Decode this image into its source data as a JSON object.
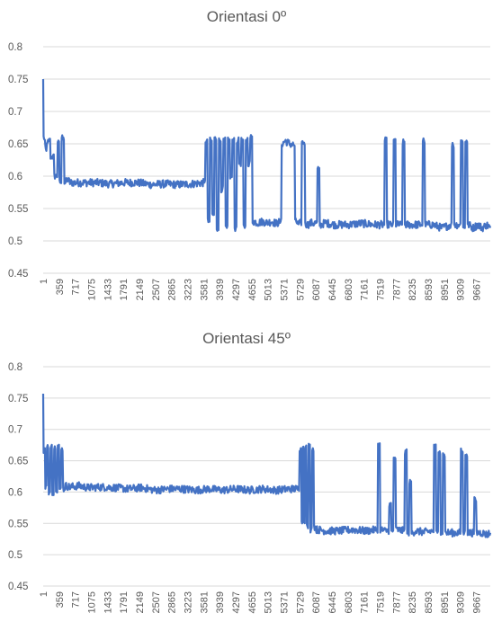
{
  "colors": {
    "series": "#4472C4",
    "grid": "#d9d9d9",
    "text": "#595959"
  },
  "chart_data": [
    {
      "type": "line",
      "title": "Orientasi 0º",
      "xlabel": "",
      "ylabel": "",
      "ylim": [
        0.45,
        0.8
      ],
      "yticks": [
        "0.8",
        "0.75",
        "0.7",
        "0.65",
        "0.6",
        "0.55",
        "0.5",
        "0.45"
      ],
      "xticks": [
        "1",
        "359",
        "717",
        "1075",
        "1433",
        "1791",
        "2149",
        "2507",
        "2865",
        "3223",
        "3581",
        "3939",
        "4297",
        "4655",
        "5013",
        "5371",
        "5729",
        "6087",
        "6445",
        "6803",
        "7161",
        "7519",
        "7877",
        "8235",
        "8593",
        "8951",
        "9309",
        "9667"
      ],
      "xlim": [
        1,
        9980
      ],
      "grid": true,
      "legend": "none",
      "series": [
        {
          "x": [
            1,
            20,
            40,
            60,
            120,
            200,
            300,
            340,
            380,
            450,
            500,
            550,
            600,
            700,
            900,
            1200,
            1500,
            1800,
            2100,
            2400,
            2700,
            3000,
            3300,
            3600,
            3650,
            3700,
            3750,
            3800,
            3850,
            3900,
            3950,
            4000,
            4050,
            4100,
            4150,
            4200,
            4250,
            4300,
            4350,
            4400,
            4450,
            4500,
            4550,
            4600,
            4650,
            4700,
            4800,
            4900,
            5000,
            5100,
            5200,
            5300,
            5350,
            5400,
            5500,
            5600,
            5650,
            5700,
            5750,
            5800,
            5900,
            6000,
            6050,
            6100,
            6150,
            6200,
            6300,
            6500,
            6800,
            7100,
            7400,
            7600,
            7650,
            7700,
            7800,
            7850,
            7900,
            8000,
            8050,
            8100,
            8300,
            8450,
            8500,
            8550,
            8700,
            8900,
            9100,
            9150,
            9200,
            9300,
            9350,
            9400,
            9450,
            9500,
            9600,
            9700,
            9800,
            9900,
            9980
          ],
          "y": [
            0.75,
            0.66,
            0.65,
            0.64,
            0.655,
            0.63,
            0.6,
            0.655,
            0.59,
            0.66,
            0.59,
            0.595,
            0.59,
            0.59,
            0.59,
            0.59,
            0.588,
            0.59,
            0.59,
            0.587,
            0.588,
            0.587,
            0.588,
            0.59,
            0.655,
            0.53,
            0.655,
            0.54,
            0.658,
            0.52,
            0.655,
            0.58,
            0.655,
            0.52,
            0.655,
            0.6,
            0.655,
            0.52,
            0.655,
            0.62,
            0.655,
            0.52,
            0.657,
            0.62,
            0.66,
            0.53,
            0.528,
            0.53,
            0.528,
            0.53,
            0.527,
            0.53,
            0.65,
            0.655,
            0.65,
            0.648,
            0.53,
            0.525,
            0.528,
            0.652,
            0.525,
            0.528,
            0.527,
            0.528,
            0.61,
            0.525,
            0.528,
            0.525,
            0.525,
            0.527,
            0.525,
            0.525,
            0.655,
            0.525,
            0.525,
            0.655,
            0.525,
            0.525,
            0.652,
            0.525,
            0.525,
            0.525,
            0.655,
            0.525,
            0.525,
            0.52,
            0.525,
            0.648,
            0.525,
            0.525,
            0.655,
            0.52,
            0.655,
            0.525,
            0.52,
            0.525,
            0.52,
            0.525,
            0.52
          ]
        }
      ]
    },
    {
      "type": "line",
      "title": "Orientasi 45º",
      "xlabel": "",
      "ylabel": "",
      "ylim": [
        0.45,
        0.8
      ],
      "yticks": [
        "0.8",
        "0.75",
        "0.7",
        "0.65",
        "0.6",
        "0.55",
        "0.5",
        "0.45"
      ],
      "xticks": [
        "1",
        "359",
        "717",
        "1075",
        "1433",
        "1791",
        "2149",
        "2507",
        "2865",
        "3223",
        "3581",
        "3939",
        "4297",
        "4655",
        "5013",
        "5371",
        "5729",
        "6087",
        "6445",
        "6803",
        "7161",
        "7519",
        "7877",
        "8235",
        "8593",
        "8951",
        "9309",
        "9667"
      ],
      "xlim": [
        1,
        9980
      ],
      "grid": true,
      "legend": "none",
      "series": [
        {
          "x": [
            1,
            20,
            40,
            60,
            100,
            140,
            180,
            220,
            260,
            300,
            340,
            380,
            420,
            460,
            500,
            600,
            800,
            1000,
            1300,
            1600,
            1900,
            2200,
            2500,
            2800,
            3100,
            3400,
            3700,
            4000,
            4300,
            4600,
            4900,
            5200,
            5500,
            5700,
            5750,
            5780,
            5800,
            5830,
            5860,
            5900,
            5940,
            5980,
            6020,
            6060,
            6100,
            6150,
            6300,
            6600,
            6900,
            7200,
            7450,
            7500,
            7550,
            7600,
            7700,
            7750,
            7800,
            7850,
            7900,
            8050,
            8100,
            8150,
            8200,
            8250,
            8300,
            8500,
            8700,
            8750,
            8800,
            8850,
            8900,
            8950,
            9000,
            9100,
            9300,
            9350,
            9400,
            9450,
            9500,
            9600,
            9650,
            9700,
            9800,
            9900,
            9980
          ],
          "y": [
            0.757,
            0.66,
            0.67,
            0.61,
            0.675,
            0.6,
            0.673,
            0.6,
            0.673,
            0.6,
            0.672,
            0.605,
            0.67,
            0.605,
            0.61,
            0.608,
            0.61,
            0.607,
            0.608,
            0.607,
            0.605,
            0.607,
            0.603,
            0.605,
            0.605,
            0.603,
            0.605,
            0.603,
            0.605,
            0.603,
            0.605,
            0.603,
            0.605,
            0.605,
            0.67,
            0.55,
            0.672,
            0.555,
            0.672,
            0.545,
            0.673,
            0.54,
            0.67,
            0.545,
            0.54,
            0.54,
            0.538,
            0.538,
            0.54,
            0.538,
            0.54,
            0.675,
            0.54,
            0.538,
            0.538,
            0.58,
            0.537,
            0.655,
            0.54,
            0.538,
            0.665,
            0.535,
            0.615,
            0.535,
            0.538,
            0.536,
            0.538,
            0.672,
            0.535,
            0.665,
            0.535,
            0.66,
            0.535,
            0.535,
            0.535,
            0.665,
            0.535,
            0.66,
            0.535,
            0.535,
            0.587,
            0.535,
            0.535,
            0.532,
            0.535
          ]
        }
      ]
    }
  ]
}
